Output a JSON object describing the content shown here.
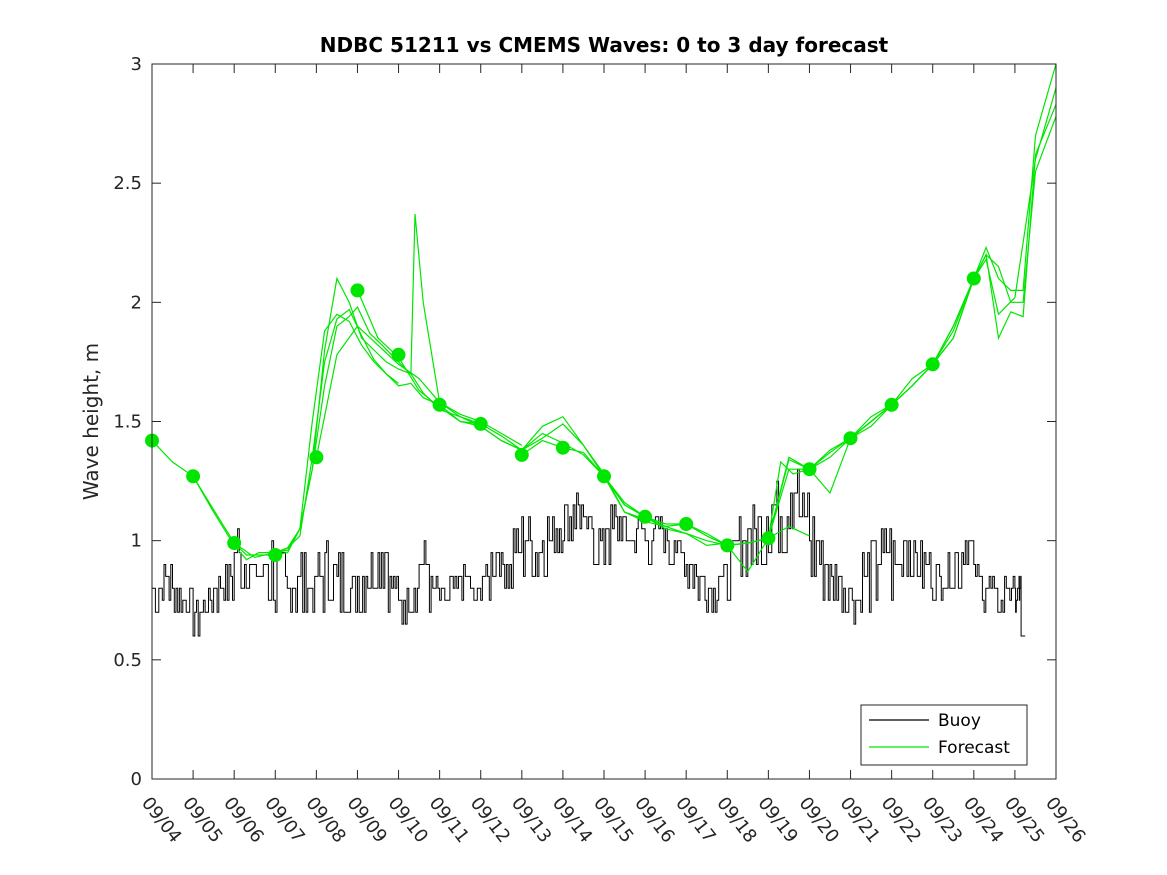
{
  "chart_data": {
    "type": "line",
    "title": "NDBC 51211 vs CMEMS Waves: 0 to 3 day forecast",
    "xlabel": "",
    "ylabel": "Wave height, m",
    "ylim": [
      0,
      3
    ],
    "xlim": [
      0,
      22
    ],
    "yticks": [
      0,
      0.5,
      1,
      1.5,
      2,
      2.5,
      3
    ],
    "ytick_labels": [
      "0",
      "0.5",
      "1",
      "1.5",
      "2",
      "2.5",
      "3"
    ],
    "categories": [
      "09/04",
      "09/05",
      "09/06",
      "09/07",
      "09/08",
      "09/09",
      "09/10",
      "09/11",
      "09/12",
      "09/13",
      "09/14",
      "09/15",
      "09/16",
      "09/17",
      "09/18",
      "09/19",
      "09/20",
      "09/21",
      "09/22",
      "09/23",
      "09/24",
      "09/25",
      "09/26"
    ],
    "x_unit": "days since 09/04",
    "legend": {
      "position": "bottom-right",
      "entries": [
        "Buoy",
        "Forecast"
      ]
    },
    "series": [
      {
        "name": "Buoy",
        "color": "#000000",
        "x": [
          0,
          0.25,
          0.5,
          0.75,
          1,
          1.25,
          1.5,
          1.75,
          2,
          2.25,
          2.5,
          2.75,
          3,
          3.25,
          3.5,
          3.75,
          4,
          4.25,
          4.5,
          4.75,
          5,
          5.25,
          5.5,
          5.75,
          6,
          6.25,
          6.5,
          6.75,
          7,
          7.25,
          7.5,
          7.75,
          8,
          8.25,
          8.5,
          8.75,
          9,
          9.25,
          9.5,
          9.75,
          10,
          10.25,
          10.5,
          10.75,
          11,
          11.25,
          11.5,
          11.75,
          12,
          12.25,
          12.5,
          12.75,
          13,
          13.25,
          13.5,
          13.75,
          14,
          14.25,
          14.5,
          14.75,
          15,
          15.25,
          15.5,
          15.75,
          16,
          16.25,
          16.5,
          16.75,
          17,
          17.25,
          17.5,
          17.75,
          18,
          18.25,
          18.5,
          18.75,
          19,
          19.25,
          19.5,
          19.75,
          20,
          20.25,
          20.5,
          20.75,
          21,
          21.1,
          21.15,
          21.25
        ],
        "values": [
          0.8,
          0.85,
          0.8,
          0.75,
          0.7,
          0.75,
          0.8,
          0.85,
          0.95,
          0.9,
          0.85,
          0.9,
          0.85,
          0.8,
          0.85,
          0.8,
          0.85,
          0.9,
          0.85,
          0.8,
          0.85,
          0.9,
          0.95,
          0.8,
          0.75,
          0.8,
          0.9,
          0.8,
          0.75,
          0.8,
          0.85,
          0.75,
          0.85,
          0.95,
          0.9,
          0.95,
          1.0,
          0.95,
          1.0,
          1.05,
          1.1,
          1.15,
          1.05,
          1.0,
          1.05,
          1.1,
          1.0,
          1.05,
          1.0,
          1.05,
          1.0,
          0.95,
          0.9,
          0.85,
          0.8,
          0.85,
          0.9,
          1.0,
          1.05,
          1.1,
          1.15,
          1.1,
          1.2,
          1.1,
          1.0,
          0.9,
          0.85,
          0.8,
          0.75,
          0.85,
          0.9,
          0.95,
          0.9,
          1.0,
          0.95,
          0.9,
          0.85,
          0.9,
          0.95,
          1.0,
          0.85,
          0.8,
          0.75,
          0.8,
          0.75,
          0.8,
          0.6,
          0.6
        ],
        "flicker": [
          0.1,
          0.1,
          0.1,
          0.05,
          0.1,
          0.05,
          0.1,
          0.1,
          0.15,
          0.1,
          0.1,
          0.15,
          0.15,
          0.1,
          0.15,
          0.1,
          0.15,
          0.15,
          0.15,
          0.1,
          0.15,
          0.1,
          0.15,
          0.1,
          0.1,
          0.1,
          0.15,
          0.1,
          0.1,
          0.1,
          0.1,
          0.05,
          0.1,
          0.1,
          0.1,
          0.15,
          0.15,
          0.1,
          0.15,
          0.1,
          0.1,
          0.1,
          0.1,
          0.1,
          0.15,
          0.1,
          0.15,
          0.1,
          0.1,
          0.1,
          0.1,
          0.1,
          0.1,
          0.1,
          0.1,
          0.1,
          0.15,
          0.15,
          0.15,
          0.2,
          0.2,
          0.15,
          0.15,
          0.15,
          0.15,
          0.15,
          0.1,
          0.1,
          0.1,
          0.15,
          0.15,
          0.15,
          0.15,
          0.15,
          0.1,
          0.1,
          0.1,
          0.1,
          0.15,
          0.1,
          0.1,
          0.1,
          0.05,
          0.05,
          0.05,
          0.05,
          0,
          0
        ]
      },
      {
        "name": "Forecast",
        "color": "#00e600",
        "runs": [
          {
            "x": [
              0,
              0.5,
              1,
              1.5,
              2,
              2.3,
              2.6,
              3,
              3.3,
              3.6,
              3.9,
              4.2,
              4.5,
              4.8,
              5.1,
              5.4,
              5.7,
              6
            ],
            "values": [
              1.42,
              1.33,
              1.27,
              1.12,
              0.98,
              0.92,
              0.95,
              0.95,
              0.96,
              1.05,
              1.5,
              1.88,
              1.95,
              1.92,
              1.82,
              1.75,
              1.7,
              1.66
            ]
          },
          {
            "x": [
              1,
              1.5,
              2,
              2.5,
              3,
              3.3,
              3.6,
              3.9,
              4.2,
              4.5,
              4.8,
              5.1,
              5.4,
              5.7,
              6,
              6.3,
              6.6,
              7
            ],
            "values": [
              1.27,
              1.13,
              0.99,
              0.93,
              0.95,
              0.97,
              1.02,
              1.35,
              1.75,
              1.93,
              1.97,
              1.86,
              1.76,
              1.7,
              1.65,
              1.66,
              1.6,
              1.57
            ]
          },
          {
            "x": [
              2,
              2.3,
              2.6,
              3,
              3.3,
              3.6,
              3.9,
              4.2,
              4.5,
              4.8,
              5.1,
              5.4,
              5.7,
              6,
              6.3,
              6.6,
              7,
              7.5,
              8
            ],
            "values": [
              0.99,
              0.94,
              0.94,
              0.94,
              0.95,
              1.05,
              1.3,
              1.8,
              2.1,
              2.0,
              1.85,
              1.8,
              1.75,
              1.72,
              1.7,
              1.62,
              1.55,
              1.52,
              1.49
            ]
          },
          {
            "x": [
              3,
              3.3,
              3.6,
              3.9,
              4.2,
              4.5,
              4.8,
              5,
              5.3,
              5.6,
              6,
              6.3,
              6.4,
              6.6,
              7,
              7.5,
              8,
              8.5,
              9
            ],
            "values": [
              0.94,
              0.97,
              1.05,
              1.3,
              1.65,
              1.9,
              1.94,
              1.98,
              1.87,
              1.82,
              1.75,
              1.7,
              2.37,
              2.0,
              1.58,
              1.53,
              1.5,
              1.45,
              1.4
            ]
          },
          {
            "x": [
              4,
              4.5,
              5,
              5.5,
              6,
              6.5,
              7,
              7.5,
              8,
              8.5,
              9,
              9.5,
              10,
              10.5,
              11,
              11.5,
              12
            ],
            "values": [
              1.35,
              1.78,
              1.9,
              1.82,
              1.74,
              1.68,
              1.58,
              1.52,
              1.48,
              1.42,
              1.38,
              1.43,
              1.49,
              1.4,
              1.27,
              1.12,
              1.09
            ]
          },
          {
            "x": [
              5,
              5.5,
              6,
              6.5,
              7,
              7.5,
              8,
              8.5,
              9,
              9.5,
              10,
              10.5,
              11,
              11.5,
              12,
              12.5,
              13,
              13.5,
              14
            ],
            "values": [
              2.05,
              1.85,
              1.77,
              1.63,
              1.56,
              1.5,
              1.48,
              1.42,
              1.38,
              1.48,
              1.52,
              1.4,
              1.28,
              1.12,
              1.08,
              1.06,
              1.03,
              0.98,
              0.99
            ]
          },
          {
            "x": [
              7,
              7.5,
              8,
              8.5,
              9,
              9.5,
              10,
              10.5,
              11,
              11.5,
              12,
              12.5,
              13,
              13.5,
              14,
              14.5,
              15,
              15.5,
              16
            ],
            "values": [
              1.57,
              1.5,
              1.49,
              1.44,
              1.38,
              1.45,
              1.41,
              1.36,
              1.27,
              1.15,
              1.1,
              1.05,
              1.03,
              1.0,
              0.98,
              0.99,
              1.01,
              1.06,
              1.02
            ]
          },
          {
            "x": [
              9,
              9.5,
              10,
              10.5,
              11,
              11.5,
              12,
              12.5,
              13,
              13.5,
              14,
              14.5,
              15,
              15.5,
              16,
              16.5,
              17,
              17.5,
              18
            ],
            "values": [
              1.36,
              1.42,
              1.39,
              1.37,
              1.27,
              1.16,
              1.1,
              1.06,
              1.07,
              1.02,
              0.98,
              0.87,
              1.01,
              1.34,
              1.3,
              1.35,
              1.43,
              1.48,
              1.57
            ]
          },
          {
            "x": [
              11,
              11.5,
              12,
              12.5,
              13,
              13.5,
              14,
              14.5,
              15,
              15.5,
              16,
              16.5,
              17,
              17.5,
              18,
              18.5,
              19,
              19.5,
              20
            ],
            "values": [
              1.27,
              1.15,
              1.1,
              1.07,
              1.07,
              1.03,
              0.98,
              0.99,
              1.01,
              1.3,
              1.3,
              1.37,
              1.43,
              1.5,
              1.57,
              1.65,
              1.74,
              1.85,
              2.1
            ]
          },
          {
            "x": [
              13,
              13.5,
              14,
              14.5,
              15,
              15.3,
              15.6,
              16,
              16.5,
              17,
              17.5,
              18,
              18.5,
              19,
              19.5,
              20,
              20.3,
              20.6,
              21,
              21.5,
              22
            ],
            "values": [
              1.07,
              1.02,
              0.98,
              0.99,
              1.01,
              1.33,
              1.28,
              1.3,
              1.2,
              1.43,
              1.5,
              1.57,
              1.65,
              1.74,
              1.85,
              2.1,
              2.18,
              1.95,
              2.02,
              2.6,
              2.9
            ]
          },
          {
            "x": [
              15,
              15.5,
              16,
              16.5,
              17,
              17.5,
              18,
              18.5,
              19,
              19.5,
              20,
              20.3,
              20.6,
              20.9,
              21.2,
              21.5,
              22
            ],
            "values": [
              1.01,
              1.35,
              1.3,
              1.38,
              1.43,
              1.52,
              1.57,
              1.68,
              1.74,
              1.9,
              2.1,
              2.2,
              2.15,
              2.0,
              2.0,
              2.55,
              2.78
            ]
          },
          {
            "x": [
              17,
              17.5,
              18,
              18.5,
              19,
              19.5,
              20,
              20.3,
              20.6,
              20.9,
              21.2,
              21.5,
              22
            ],
            "values": [
              1.43,
              1.5,
              1.57,
              1.65,
              1.74,
              1.88,
              2.1,
              2.23,
              2.1,
              2.05,
              2.05,
              2.7,
              3.0
            ]
          },
          {
            "x": [
              19,
              19.5,
              20,
              20.3,
              20.6,
              20.9,
              21.2,
              21.5,
              22
            ],
            "values": [
              1.74,
              1.9,
              2.1,
              2.2,
              1.85,
              1.96,
              1.94,
              2.62,
              2.83
            ]
          }
        ],
        "markers": {
          "x": [
            0,
            1,
            2,
            3,
            4,
            5,
            6,
            7,
            8,
            9,
            10,
            11,
            12,
            13,
            14,
            15,
            16,
            17,
            18,
            19,
            20
          ],
          "values": [
            1.42,
            1.27,
            0.99,
            0.94,
            1.35,
            2.05,
            1.78,
            1.57,
            1.49,
            1.36,
            1.39,
            1.27,
            1.1,
            1.07,
            0.98,
            1.01,
            1.3,
            1.43,
            1.57,
            1.74,
            2.1
          ]
        }
      }
    ]
  }
}
